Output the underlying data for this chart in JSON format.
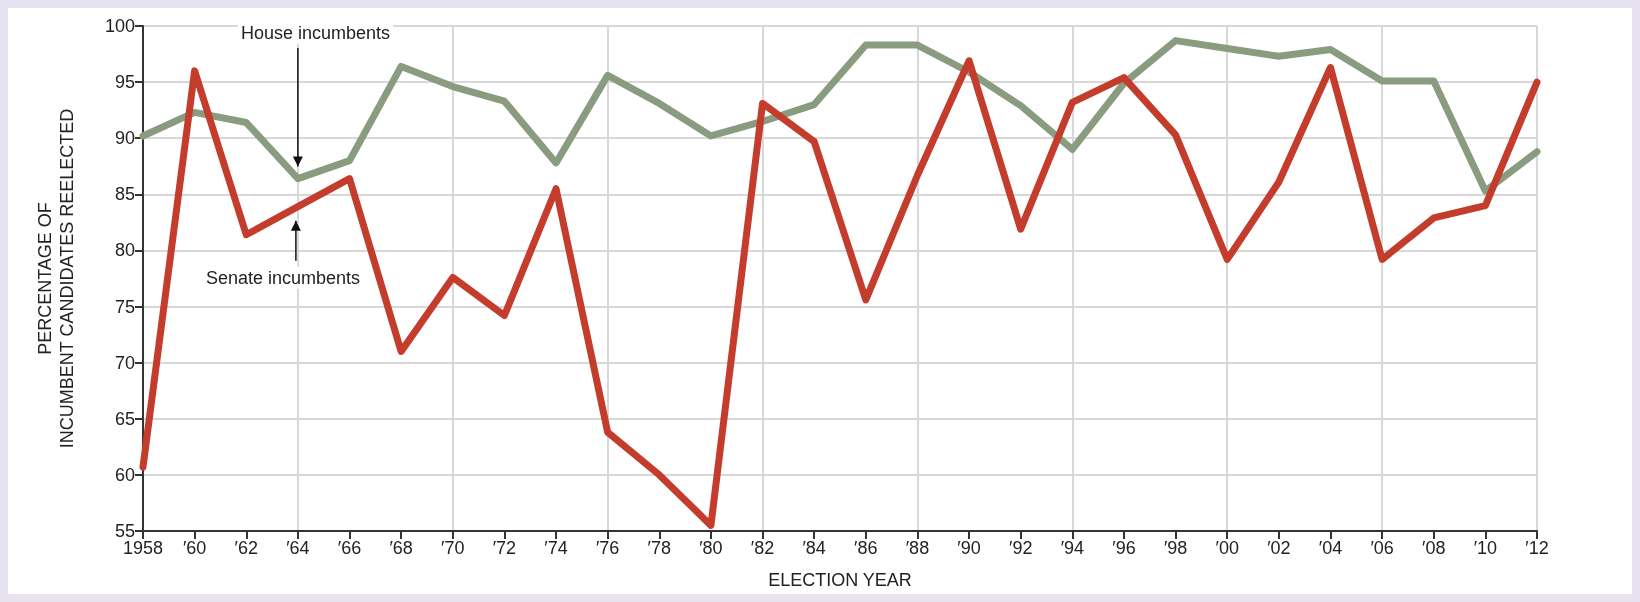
{
  "chart_data": {
    "type": "line",
    "xlabel": "ELECTION YEAR",
    "ylabel": "PERCENTAGE OF\nINCUMBENT CANDIDATES REELECTED",
    "categories": [
      "1958",
      "′60",
      "′62",
      "′64",
      "′66",
      "′68",
      "′70",
      "′72",
      "′74",
      "′76",
      "′78",
      "′80",
      "′82",
      "′84",
      "′86",
      "′88",
      "′90",
      "′92",
      "′94",
      "′96",
      "′98",
      "′00",
      "′02",
      "′04",
      "′06",
      "′08",
      "′10",
      "′12"
    ],
    "series": [
      {
        "name": "House incumbents",
        "color": "#8a9c80",
        "values": [
          90.2,
          92.3,
          91.4,
          86.4,
          88,
          96.4,
          94.6,
          93.3,
          87.8,
          95.6,
          93.1,
          90.2,
          91.5,
          93,
          98.3,
          98.3,
          95.9,
          92.9,
          89,
          94.9,
          98.7,
          98,
          97.3,
          97.9,
          95.1,
          95.1,
          85.3,
          88.8
        ]
      },
      {
        "name": "Senate incumbents",
        "color": "#c43c2c",
        "values": [
          60.7,
          96,
          81.4,
          83.9,
          86.4,
          71,
          77.6,
          74.2,
          85.5,
          63.8,
          60,
          55.5,
          93.1,
          89.7,
          75.6,
          86.7,
          96.9,
          81.9,
          93.2,
          95.4,
          90.3,
          79.2,
          86.1,
          96.3,
          79.2,
          82.9,
          84,
          95
        ]
      }
    ],
    "ylim": [
      55,
      100
    ],
    "yticks": [
      55,
      60,
      65,
      70,
      75,
      80,
      85,
      90,
      95,
      100
    ],
    "grid": true,
    "legend": false,
    "marker": "none",
    "line_style": "solid"
  }
}
